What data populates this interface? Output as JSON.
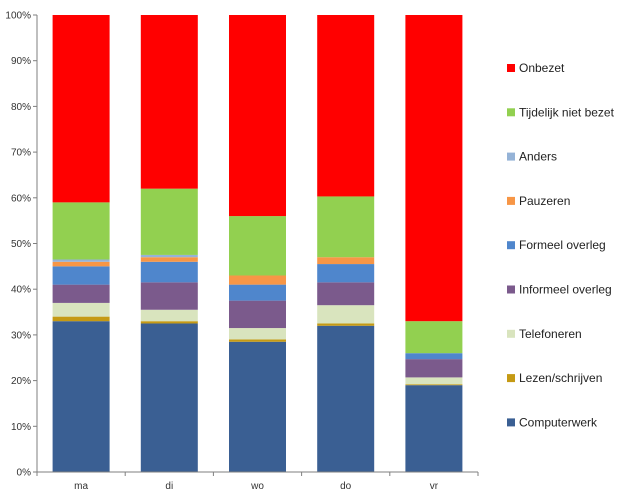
{
  "chart_data": {
    "type": "bar",
    "stacked": true,
    "percent": true,
    "categories": [
      "ma",
      "di",
      "wo",
      "do",
      "vr"
    ],
    "ylim": [
      0,
      100
    ],
    "yticks": [
      0,
      10,
      20,
      30,
      40,
      50,
      60,
      70,
      80,
      90,
      100
    ],
    "ytick_labels": [
      "0%",
      "10%",
      "20%",
      "30%",
      "40%",
      "50%",
      "60%",
      "70%",
      "80%",
      "90%",
      "100%"
    ],
    "grid": false,
    "legend_position": "right",
    "series": [
      {
        "name": "Computerwerk",
        "color": "#3A5F93",
        "values": [
          33,
          32.5,
          28.5,
          32,
          19
        ]
      },
      {
        "name": "Lezen/schrijven",
        "color": "#C59A14",
        "values": [
          1,
          0.5,
          0.5,
          0.5,
          0.2
        ]
      },
      {
        "name": "Telefoneren",
        "color": "#D9E4BE",
        "values": [
          3,
          2.5,
          2.5,
          4,
          1.5
        ]
      },
      {
        "name": "Informeel overleg",
        "color": "#7B5A8C",
        "values": [
          4,
          6,
          6,
          5,
          4
        ]
      },
      {
        "name": "Formeel overleg",
        "color": "#4F86CC",
        "values": [
          4,
          4.5,
          3.5,
          4,
          1.3
        ]
      },
      {
        "name": "Pauzeren",
        "color": "#F79646",
        "values": [
          1,
          1,
          2,
          1.5,
          0
        ]
      },
      {
        "name": "Anders",
        "color": "#95B3D7",
        "values": [
          0.5,
          0.5,
          0,
          0,
          0
        ]
      },
      {
        "name": "Tijdelijk niet bezet",
        "color": "#92D050",
        "values": [
          12.5,
          14.5,
          13,
          13.3,
          7
        ]
      },
      {
        "name": "Onbezet",
        "color": "#FF0000",
        "values": [
          41,
          38,
          44,
          39.7,
          67
        ]
      }
    ]
  }
}
